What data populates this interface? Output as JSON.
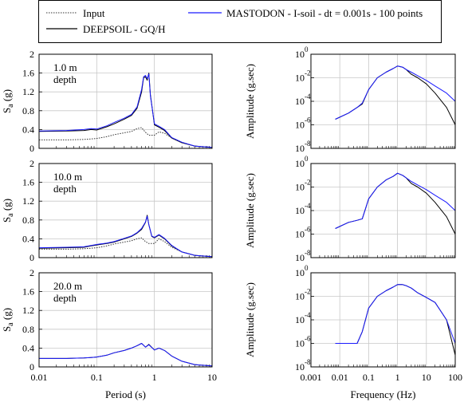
{
  "legend": {
    "entries": [
      {
        "label": "Input",
        "style": "dotted",
        "color": "#000000"
      },
      {
        "label": "DEEPSOIL - GQ/H",
        "style": "solid",
        "color": "#000000"
      },
      {
        "label": "MASTODON - I-soil - dt = 0.001s - 100 points",
        "style": "solid",
        "color": "#1a1aff"
      }
    ]
  },
  "colors": {
    "input": "#333333",
    "deepsoil": "#000000",
    "mastodon": "#1a1aff"
  },
  "chart_data": [
    {
      "type": "line",
      "panel": "spectral-acceleration-1m",
      "title": "1.0 m depth",
      "title_lines": [
        "1.0 m",
        "depth"
      ],
      "xlabel": "",
      "ylabel": "Sa (g)",
      "xscale": "log",
      "xlim": [
        0.01,
        10
      ],
      "ylim": [
        0,
        2
      ],
      "xticks": [],
      "yticks": [
        "0",
        "0.4",
        "0.8",
        "1.2",
        "1.6",
        "2"
      ],
      "grid": true,
      "series": [
        {
          "name": "Input",
          "x": [
            0.01,
            0.03,
            0.06,
            0.08,
            0.1,
            0.15,
            0.2,
            0.3,
            0.4,
            0.5,
            0.6,
            0.7,
            0.8,
            1.0,
            1.2,
            1.5,
            2,
            3,
            5,
            10
          ],
          "y": [
            0.18,
            0.18,
            0.19,
            0.2,
            0.21,
            0.25,
            0.29,
            0.33,
            0.36,
            0.42,
            0.44,
            0.34,
            0.28,
            0.28,
            0.35,
            0.32,
            0.22,
            0.12,
            0.05,
            0.02
          ]
        },
        {
          "name": "DEEPSOIL - GQ/H",
          "x": [
            0.01,
            0.03,
            0.06,
            0.08,
            0.1,
            0.15,
            0.2,
            0.3,
            0.4,
            0.5,
            0.6,
            0.65,
            0.7,
            0.75,
            0.8,
            0.85,
            1.0,
            1.2,
            1.5,
            2,
            3,
            5,
            10
          ],
          "y": [
            0.36,
            0.37,
            0.38,
            0.4,
            0.39,
            0.46,
            0.52,
            0.62,
            0.7,
            0.85,
            1.2,
            1.5,
            1.52,
            1.45,
            1.6,
            1.15,
            0.5,
            0.45,
            0.38,
            0.22,
            0.12,
            0.05,
            0.02
          ]
        },
        {
          "name": "MASTODON - I-soil - dt = 0.001s - 100 points",
          "x": [
            0.01,
            0.03,
            0.06,
            0.08,
            0.1,
            0.15,
            0.2,
            0.3,
            0.4,
            0.5,
            0.6,
            0.65,
            0.7,
            0.75,
            0.8,
            0.85,
            1.0,
            1.2,
            1.5,
            2,
            3,
            5,
            10
          ],
          "y": [
            0.37,
            0.38,
            0.4,
            0.42,
            0.41,
            0.48,
            0.55,
            0.64,
            0.72,
            0.88,
            1.25,
            1.52,
            1.55,
            1.48,
            1.58,
            1.12,
            0.52,
            0.47,
            0.4,
            0.23,
            0.13,
            0.05,
            0.02
          ]
        }
      ]
    },
    {
      "type": "line",
      "panel": "fourier-amplitude-1m",
      "title": "",
      "xlabel": "",
      "ylabel": "Amplitude (g.sec)",
      "xscale": "log",
      "yscale": "log",
      "xlim": [
        0.001,
        100
      ],
      "ylim": [
        1e-08,
        1
      ],
      "xticks": [],
      "yticks": [
        "10^-8",
        "10^-6",
        "10^-4",
        "10^-2",
        "10^0"
      ],
      "grid": true,
      "series": [
        {
          "name": "DEEPSOIL - GQ/H",
          "x": [
            0.007,
            0.02,
            0.04,
            0.06,
            0.1,
            0.2,
            0.4,
            0.7,
            1.0,
            1.5,
            2,
            3,
            5,
            10,
            20,
            50,
            100
          ],
          "y": [
            3e-06,
            1e-05,
            3e-05,
            6e-05,
            0.001,
            0.01,
            0.03,
            0.06,
            0.1,
            0.08,
            0.05,
            0.02,
            0.01,
            0.003,
            0.0005,
            3e-05,
            1e-06
          ]
        },
        {
          "name": "MASTODON - I-soil - dt = 0.001s - 100 points",
          "x": [
            0.007,
            0.02,
            0.04,
            0.06,
            0.1,
            0.2,
            0.4,
            0.7,
            1.0,
            1.5,
            2,
            3,
            5,
            10,
            20,
            50,
            100
          ],
          "y": [
            3e-06,
            1e-05,
            3e-05,
            7e-05,
            0.001,
            0.01,
            0.03,
            0.06,
            0.1,
            0.08,
            0.05,
            0.03,
            0.015,
            0.006,
            0.002,
            0.0005,
            0.0001
          ]
        }
      ]
    },
    {
      "type": "line",
      "panel": "spectral-acceleration-10m",
      "title": "10.0 m depth",
      "title_lines": [
        "10.0 m",
        "depth"
      ],
      "xlabel": "",
      "ylabel": "Sa (g)",
      "xscale": "log",
      "xlim": [
        0.01,
        10
      ],
      "ylim": [
        0,
        2
      ],
      "xticks": [],
      "yticks": [
        "0",
        "0.4",
        "0.8",
        "1.2",
        "1.6",
        "2"
      ],
      "grid": true,
      "series": [
        {
          "name": "Input",
          "x": [
            0.01,
            0.03,
            0.06,
            0.08,
            0.1,
            0.15,
            0.2,
            0.3,
            0.4,
            0.5,
            0.6,
            0.7,
            0.8,
            1.0,
            1.2,
            1.5,
            2,
            3,
            5,
            10
          ],
          "y": [
            0.18,
            0.18,
            0.19,
            0.2,
            0.21,
            0.25,
            0.29,
            0.33,
            0.36,
            0.4,
            0.42,
            0.34,
            0.3,
            0.3,
            0.4,
            0.34,
            0.22,
            0.12,
            0.05,
            0.02
          ]
        },
        {
          "name": "DEEPSOIL - GQ/H",
          "x": [
            0.01,
            0.03,
            0.06,
            0.08,
            0.1,
            0.15,
            0.2,
            0.3,
            0.4,
            0.5,
            0.6,
            0.7,
            0.75,
            0.8,
            0.9,
            1.0,
            1.2,
            1.5,
            2,
            3,
            5,
            10
          ],
          "y": [
            0.2,
            0.21,
            0.22,
            0.25,
            0.27,
            0.3,
            0.33,
            0.4,
            0.45,
            0.52,
            0.6,
            0.75,
            0.9,
            0.7,
            0.45,
            0.42,
            0.48,
            0.4,
            0.25,
            0.12,
            0.05,
            0.02
          ]
        },
        {
          "name": "MASTODON - I-soil - dt = 0.001s - 100 points",
          "x": [
            0.01,
            0.03,
            0.06,
            0.08,
            0.1,
            0.15,
            0.2,
            0.3,
            0.4,
            0.5,
            0.6,
            0.7,
            0.75,
            0.8,
            0.9,
            1.0,
            1.2,
            1.5,
            2,
            3,
            5,
            10
          ],
          "y": [
            0.21,
            0.22,
            0.23,
            0.26,
            0.28,
            0.31,
            0.34,
            0.41,
            0.46,
            0.53,
            0.62,
            0.76,
            0.88,
            0.7,
            0.46,
            0.43,
            0.49,
            0.41,
            0.26,
            0.12,
            0.05,
            0.02
          ]
        }
      ]
    },
    {
      "type": "line",
      "panel": "fourier-amplitude-10m",
      "title": "",
      "xlabel": "",
      "ylabel": "Amplitude (g.sec)",
      "xscale": "log",
      "yscale": "log",
      "xlim": [
        0.001,
        100
      ],
      "ylim": [
        1e-08,
        1
      ],
      "xticks": [],
      "yticks": [
        "10^-8",
        "10^-6",
        "10^-4",
        "10^-2",
        "10^0"
      ],
      "grid": true,
      "series": [
        {
          "name": "DEEPSOIL - GQ/H",
          "x": [
            0.007,
            0.02,
            0.04,
            0.06,
            0.1,
            0.2,
            0.4,
            0.7,
            1.0,
            1.5,
            2,
            3,
            5,
            10,
            20,
            50,
            100
          ],
          "y": [
            3e-06,
            1e-05,
            1.5e-05,
            2e-05,
            0.001,
            0.01,
            0.04,
            0.08,
            0.15,
            0.1,
            0.06,
            0.02,
            0.01,
            0.003,
            0.0005,
            3e-05,
            1e-06
          ]
        },
        {
          "name": "MASTODON - I-soil - dt = 0.001s - 100 points",
          "x": [
            0.007,
            0.02,
            0.04,
            0.06,
            0.1,
            0.2,
            0.4,
            0.7,
            1.0,
            1.5,
            2,
            3,
            5,
            10,
            20,
            50,
            100
          ],
          "y": [
            3e-06,
            1e-05,
            1.5e-05,
            2e-05,
            0.001,
            0.01,
            0.04,
            0.08,
            0.15,
            0.1,
            0.06,
            0.03,
            0.015,
            0.006,
            0.002,
            0.0005,
            0.0001
          ]
        }
      ]
    },
    {
      "type": "line",
      "panel": "spectral-acceleration-20m",
      "title": "20.0 m depth",
      "title_lines": [
        "20.0 m",
        "depth"
      ],
      "xlabel": "Period (s)",
      "ylabel": "Sa (g)",
      "xscale": "log",
      "xlim": [
        0.01,
        10
      ],
      "ylim": [
        0,
        2
      ],
      "xticks": [
        "0.01",
        "0.1",
        "1",
        "10"
      ],
      "yticks": [
        "0",
        "0.4",
        "0.8",
        "1.2",
        "1.6",
        "2"
      ],
      "grid": true,
      "series": [
        {
          "name": "DEEPSOIL - GQ/H",
          "x": [
            0.01,
            0.03,
            0.06,
            0.08,
            0.1,
            0.15,
            0.2,
            0.3,
            0.4,
            0.5,
            0.6,
            0.7,
            0.8,
            1.0,
            1.2,
            1.5,
            2,
            3,
            5,
            10
          ],
          "y": [
            0.18,
            0.18,
            0.19,
            0.2,
            0.21,
            0.25,
            0.3,
            0.35,
            0.4,
            0.45,
            0.5,
            0.42,
            0.48,
            0.36,
            0.4,
            0.35,
            0.23,
            0.12,
            0.05,
            0.02
          ]
        },
        {
          "name": "MASTODON - I-soil - dt = 0.001s - 100 points",
          "x": [
            0.01,
            0.03,
            0.06,
            0.08,
            0.1,
            0.15,
            0.2,
            0.3,
            0.4,
            0.5,
            0.6,
            0.7,
            0.8,
            1.0,
            1.2,
            1.5,
            2,
            3,
            5,
            10
          ],
          "y": [
            0.18,
            0.18,
            0.19,
            0.2,
            0.21,
            0.25,
            0.3,
            0.35,
            0.4,
            0.45,
            0.5,
            0.42,
            0.47,
            0.36,
            0.4,
            0.35,
            0.23,
            0.12,
            0.05,
            0.02
          ]
        }
      ]
    },
    {
      "type": "line",
      "panel": "fourier-amplitude-20m",
      "title": "",
      "xlabel": "Frequency (Hz)",
      "ylabel": "Amplitude (g.sec)",
      "xscale": "log",
      "yscale": "log",
      "xlim": [
        0.001,
        100
      ],
      "ylim": [
        1e-08,
        1
      ],
      "xticks": [
        "0.001",
        "0.01",
        "0.1",
        "1",
        "10",
        "100"
      ],
      "yticks": [
        "10^-8",
        "10^-6",
        "10^-4",
        "10^-2",
        "10^0"
      ],
      "grid": true,
      "series": [
        {
          "name": "DEEPSOIL - GQ/H",
          "x": [
            0.007,
            0.02,
            0.04,
            0.06,
            0.1,
            0.2,
            0.4,
            0.7,
            1.0,
            1.5,
            2,
            3,
            5,
            10,
            20,
            50,
            100
          ],
          "y": [
            1e-06,
            1e-06,
            1e-06,
            1e-05,
            0.001,
            0.01,
            0.03,
            0.06,
            0.1,
            0.1,
            0.08,
            0.05,
            0.02,
            0.008,
            0.003,
            0.0001,
            1e-07
          ]
        },
        {
          "name": "MASTODON - I-soil - dt = 0.001s - 100 points",
          "x": [
            0.007,
            0.02,
            0.04,
            0.06,
            0.1,
            0.2,
            0.4,
            0.7,
            1.0,
            1.5,
            2,
            3,
            5,
            10,
            20,
            50,
            100
          ],
          "y": [
            1e-06,
            1e-06,
            1e-06,
            1e-05,
            0.001,
            0.01,
            0.03,
            0.06,
            0.1,
            0.1,
            0.08,
            0.05,
            0.02,
            0.008,
            0.003,
            0.0001,
            1e-06
          ]
        }
      ]
    }
  ]
}
